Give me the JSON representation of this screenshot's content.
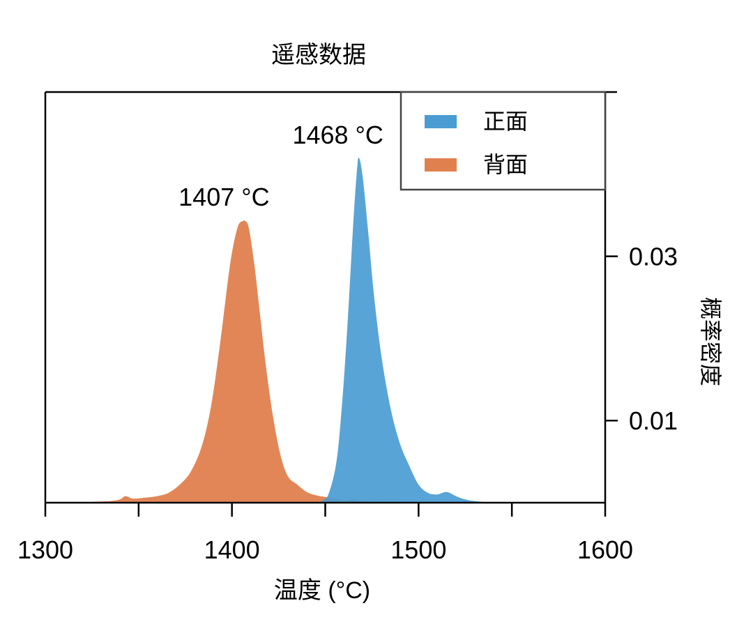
{
  "chart_data": {
    "type": "area",
    "title": "遥感数据",
    "xlabel": "温度 (°C)",
    "ylabel": "概率密度",
    "xlim": [
      1300,
      1600
    ],
    "ylim": [
      0,
      0.05
    ],
    "x_ticks": [
      1300,
      1350,
      1400,
      1450,
      1500,
      1550,
      1600
    ],
    "x_tick_labels": [
      "1300",
      "",
      "1400",
      "",
      "1500",
      "",
      "1600"
    ],
    "y_ticks": [
      0.01,
      0.03
    ],
    "y_tick_labels": [
      "0.01",
      "0.03"
    ],
    "y_axis_side": "right",
    "grid": false,
    "legend_position": "top-right",
    "series": [
      {
        "name": "正面",
        "color": "#4b9cd3",
        "x": [
          1446,
          1449,
          1452,
          1456,
          1459,
          1462,
          1465,
          1467,
          1468,
          1470,
          1473,
          1476,
          1480,
          1485,
          1490,
          1495,
          1500,
          1505,
          1510,
          1515,
          1520,
          1525,
          1530,
          1540
        ],
        "y": [
          0,
          0.0003,
          0.0012,
          0.005,
          0.012,
          0.022,
          0.034,
          0.0405,
          0.042,
          0.0398,
          0.033,
          0.0255,
          0.018,
          0.0115,
          0.0072,
          0.0045,
          0.0022,
          0.0012,
          0.001,
          0.0013,
          0.0008,
          0.0004,
          0.0002,
          0
        ]
      },
      {
        "name": "背面",
        "color": "#e0804f",
        "x": [
          1310,
          1325,
          1335,
          1340,
          1343,
          1347,
          1353,
          1360,
          1366,
          1372,
          1378,
          1384,
          1389,
          1394,
          1399,
          1403,
          1406,
          1407,
          1409,
          1412,
          1415,
          1418,
          1422,
          1426,
          1430,
          1435,
          1440,
          1445,
          1450,
          1455,
          1460,
          1465,
          1470,
          1480,
          1490,
          1500
        ],
        "y": [
          0,
          0.0001,
          0.0002,
          0.0004,
          0.0008,
          0.0005,
          0.0006,
          0.0008,
          0.0012,
          0.0022,
          0.0038,
          0.007,
          0.012,
          0.02,
          0.029,
          0.0335,
          0.0343,
          0.0343,
          0.0335,
          0.029,
          0.023,
          0.017,
          0.0105,
          0.0058,
          0.0032,
          0.0022,
          0.0013,
          0.0009,
          0.0007,
          0.0005,
          0.0003,
          0.0004,
          0.0002,
          0.0001,
          0.0001,
          0
        ]
      }
    ],
    "annotations": [
      {
        "text": "1468 °C",
        "x": 1468,
        "y": 0.042
      },
      {
        "text": "1407 °C",
        "x": 1407,
        "y": 0.0343
      }
    ]
  }
}
